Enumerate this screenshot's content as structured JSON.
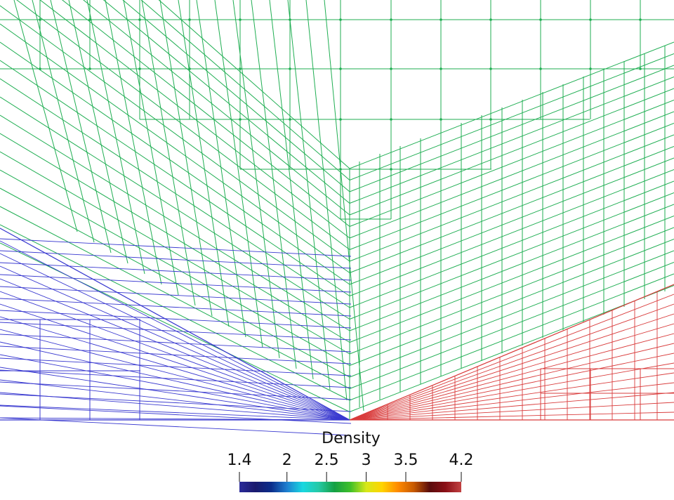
{
  "colorbar": {
    "title": "Density",
    "range": [
      1.4,
      4.2
    ],
    "ticks": [
      {
        "value": 1.4,
        "label": "1.4"
      },
      {
        "value": 2,
        "label": "2"
      },
      {
        "value": 2.5,
        "label": "2.5"
      },
      {
        "value": 3,
        "label": "3"
      },
      {
        "value": 3.5,
        "label": "3.5"
      },
      {
        "value": 4.2,
        "label": "4.2"
      }
    ],
    "colormap": [
      "#2b2b9a",
      "#1a1a6e",
      "#0b2d8a",
      "#1e7fd0",
      "#18d8e0",
      "#25c9a6",
      "#14a043",
      "#3fbf2a",
      "#d6e81a",
      "#ffd400",
      "#ff8a00",
      "#c85a00",
      "#5a0c0c",
      "#8a0f16",
      "#c24242"
    ]
  },
  "mesh": {
    "low_density_color": "#3a3ad0",
    "mid_density_color": "#1fae52",
    "high_density_color": "#d93c3c"
  }
}
